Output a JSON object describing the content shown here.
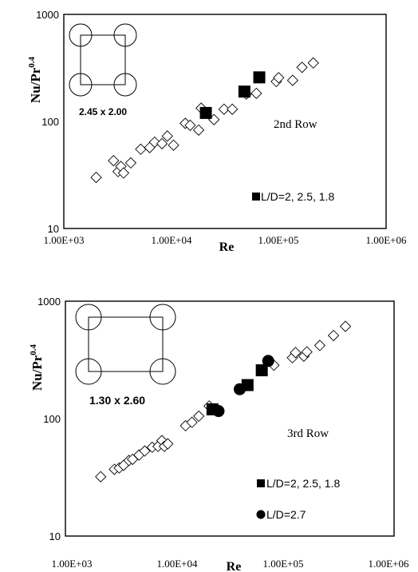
{
  "chart_data": [
    {
      "type": "scatter",
      "xscale": "log",
      "yscale": "log",
      "xlim": [
        1000,
        1000000
      ],
      "ylim": [
        10,
        1000
      ],
      "xticks": [
        "1.00E+03",
        "1.00E+04",
        "1.00E+05",
        "1.00E+06"
      ],
      "yticks": [
        "10",
        "100",
        "1000"
      ],
      "xlabel": "Re",
      "ylabel_base": "Nu/Pr",
      "ylabel_exp": "0.4",
      "annotation": "2nd Row",
      "inset_label": "2.45 x 2.00",
      "legend_placement": "bottom-right",
      "series": [
        {
          "marker": "open-diamond",
          "x": [
            2000,
            2900,
            3200,
            3400,
            3600,
            4200,
            5200,
            6300,
            7000,
            8200,
            9200,
            10500,
            13500,
            15000,
            18000,
            19000,
            25000,
            31000,
            37000,
            50000,
            62000,
            95000,
            100000,
            135000,
            165000,
            210000
          ],
          "y": [
            30,
            43,
            34,
            38,
            33,
            41,
            55,
            57,
            64,
            62,
            73,
            60,
            96,
            92,
            83,
            133,
            104,
            130,
            130,
            180,
            183,
            236,
            256,
            242,
            320,
            352
          ]
        },
        {
          "name": "L/D=2, 2.5, 1.8",
          "marker": "filled-square",
          "x": [
            21000,
            48000,
            66000
          ],
          "y": [
            120,
            190,
            258
          ]
        }
      ]
    },
    {
      "type": "scatter",
      "xscale": "log",
      "yscale": "log",
      "xlim": [
        1000,
        1000000
      ],
      "ylim": [
        10,
        1000
      ],
      "xticks": [
        "1.00E+03",
        "1.00E+04",
        "1.00E+05",
        "1.00E+06"
      ],
      "yticks": [
        "10",
        "100",
        "1000"
      ],
      "xlabel": "Re",
      "ylabel_base": "Nu/Pr",
      "ylabel_exp": "0.4",
      "annotation": "3rd Row",
      "inset_label": "1.30 x 2.60",
      "legend_placement": "bottom-right",
      "series": [
        {
          "marker": "open-diamond",
          "x": [
            2100,
            2800,
            3100,
            3400,
            3800,
            4100,
            4700,
            5300,
            6200,
            7000,
            7600,
            8000,
            8600,
            12500,
            14300,
            16500,
            20500,
            80000,
            118000,
            126000,
            150000,
            160000,
            210000,
            280000,
            360000
          ],
          "y": [
            32,
            37,
            38,
            40,
            44,
            45,
            49,
            53,
            57,
            58,
            65,
            58,
            61,
            87,
            93,
            105,
            128,
            285,
            330,
            365,
            340,
            370,
            420,
            510,
            610
          ]
        },
        {
          "name": "L/D=2, 2.5, 1.8",
          "marker": "filled-square",
          "x": [
            22000,
            46000,
            62000
          ],
          "y": [
            120,
            193,
            258
          ]
        },
        {
          "name": "L/D=2.7",
          "marker": "filled-circle",
          "x": [
            25000,
            39000,
            71000
          ],
          "y": [
            116,
            178,
            310
          ]
        }
      ]
    }
  ]
}
